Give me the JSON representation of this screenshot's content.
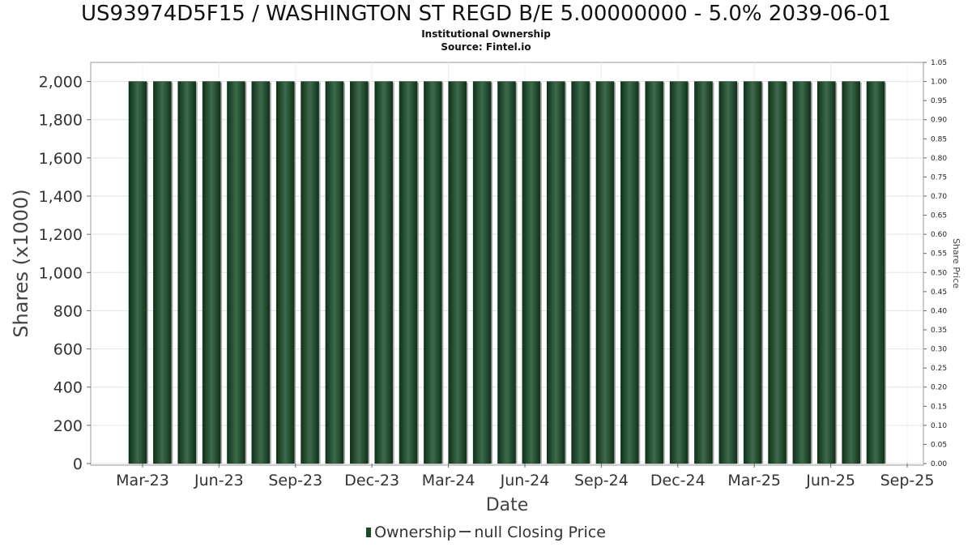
{
  "title": "US93974D5F15 / WASHINGTON ST REGD B/E 5.00000000 - 5.0% 2039-06-01",
  "subtitle1": "Institutional Ownership",
  "subtitle2": "Source: Fintel.io",
  "legend": {
    "ownership_label": "Ownership",
    "price_label": "null Closing Price"
  },
  "colors": {
    "bar": "#1f4a2a",
    "bar_dark": "#0f3219",
    "bar_light": "#3e6a4c",
    "bar_shadow": "#a8a8a8"
  },
  "chart_data": {
    "type": "bar",
    "xlabel": "Date",
    "ylabel": "Shares (x1000)",
    "y2label": "Share Price",
    "ylim": [
      0,
      2100
    ],
    "y2lim": [
      0,
      1.05
    ],
    "y_ticks": [
      "0",
      "200",
      "400",
      "600",
      "800",
      "1,000",
      "1,200",
      "1,400",
      "1,600",
      "1,800",
      "2,000"
    ],
    "y2_ticks": [
      "0.00",
      "0.05",
      "0.10",
      "0.15",
      "0.20",
      "0.25",
      "0.30",
      "0.35",
      "0.40",
      "0.45",
      "0.50",
      "0.55",
      "0.60",
      "0.65",
      "0.70",
      "0.75",
      "0.80",
      "0.85",
      "0.90",
      "0.95",
      "1.00",
      "1.05"
    ],
    "x_ticks": [
      "Mar-23",
      "Jun-23",
      "Sep-23",
      "Dec-23",
      "Mar-24",
      "Jun-24",
      "Sep-24",
      "Dec-24",
      "Mar-25",
      "Jun-25",
      "Sep-25"
    ],
    "values": [
      2000,
      2000,
      2000,
      2000,
      2000,
      2000,
      2000,
      2000,
      2000,
      2000,
      2000,
      2000,
      2000,
      2000,
      2000,
      2000,
      2000,
      2000,
      2000,
      2000,
      2000,
      2000,
      2000,
      2000,
      2000,
      2000,
      2000,
      2000,
      2000,
      2000,
      2000
    ],
    "grid": true,
    "legend_position": "bottom"
  }
}
